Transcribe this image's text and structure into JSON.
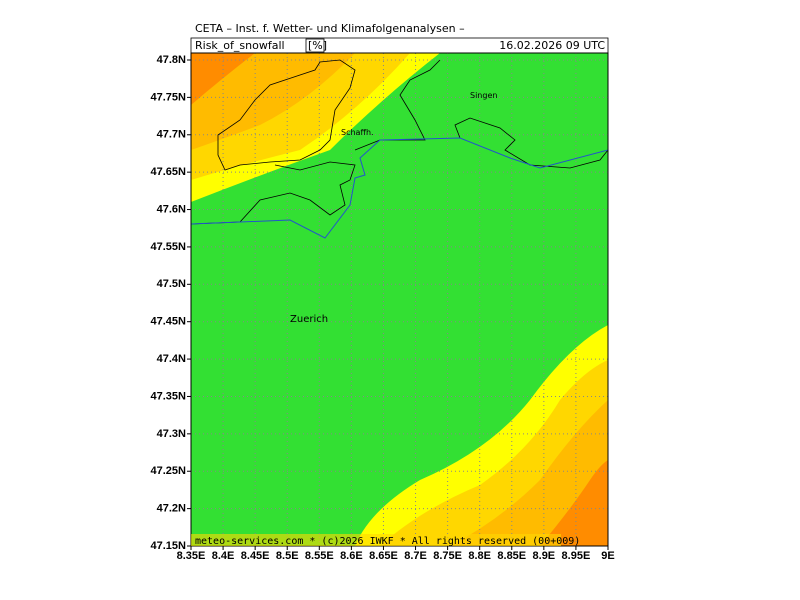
{
  "header": {
    "title": "CETA – Inst. f. Wetter- und Klimafolgenanalysen –",
    "parameter": "Risk_of_snowfall",
    "unit": "[%]",
    "datetime": "16.02.2026  09 UTC"
  },
  "map": {
    "lat_labels": [
      "47.8N",
      "47.75N",
      "47.7N",
      "47.65N",
      "47.6N",
      "47.55N",
      "47.5N",
      "47.45N",
      "47.4N",
      "47.35N",
      "47.3N",
      "47.25N",
      "47.2N",
      "47.15N"
    ],
    "lon_labels": [
      "8.35E",
      "8.4E",
      "8.45E",
      "8.5E",
      "8.55E",
      "8.6E",
      "8.65E",
      "8.7E",
      "8.75E",
      "8.8E",
      "8.85E",
      "8.9E",
      "8.95E",
      "9E"
    ],
    "places": [
      "Singen",
      "Schaffh.",
      "Zuerich"
    ]
  },
  "footer": "meteo-services.com * (c)2026 IWKF * All rights reserved (00+009)"
}
